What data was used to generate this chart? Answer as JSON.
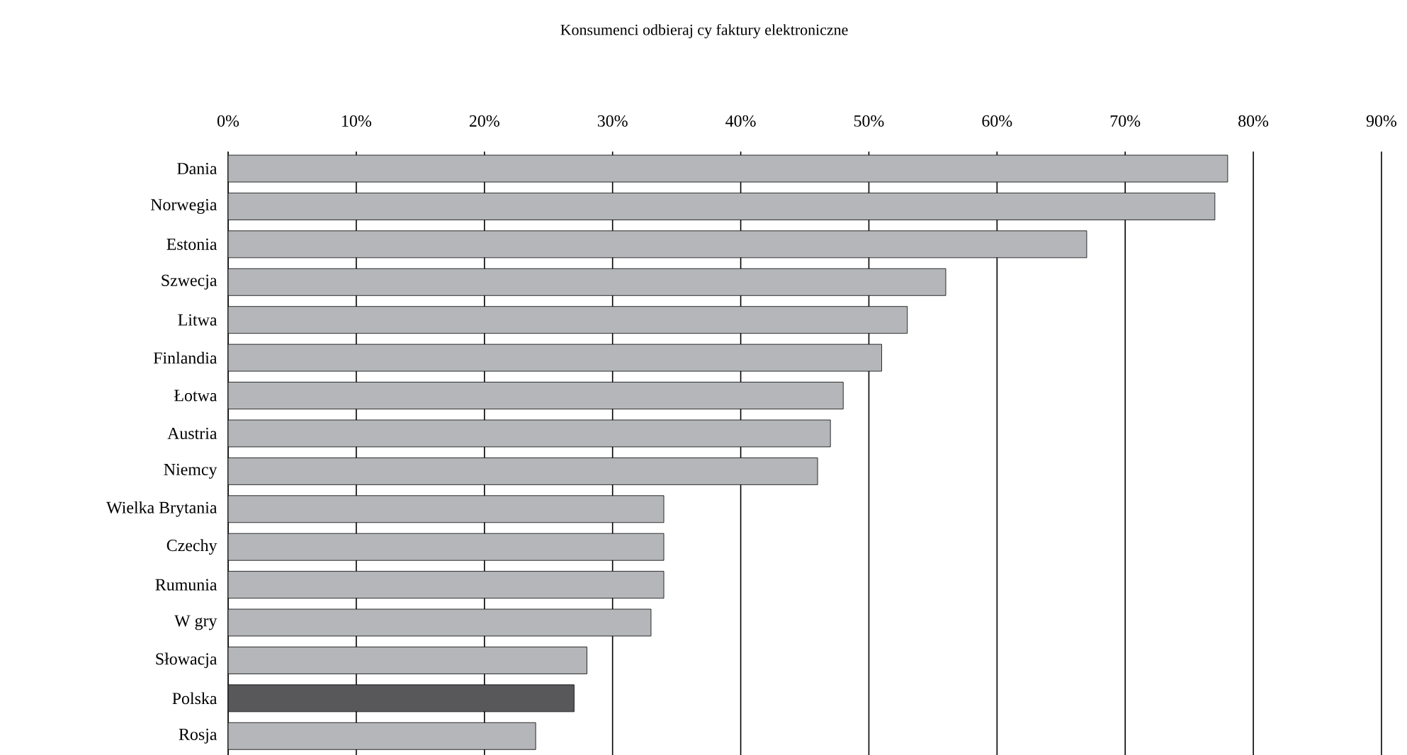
{
  "chart_data": {
    "type": "bar",
    "orientation": "horizontal",
    "title": "Konsumenci odbieraj cy faktury elektroniczne",
    "categories": [
      "Dania",
      "Norwegia",
      "Estonia",
      "Szwecja",
      "Litwa",
      "Finlandia",
      "Łotwa",
      "Austria",
      "Niemcy",
      "Wielka Brytania",
      "Czechy",
      "Rumunia",
      "W gry",
      "Słowacja",
      "Polska",
      "Rosja"
    ],
    "values": [
      78,
      77,
      67,
      56,
      53,
      51,
      48,
      47,
      46,
      34,
      34,
      34,
      33,
      28,
      27,
      24
    ],
    "colors": [
      "#b4b6b9",
      "#b4b6b9",
      "#b4b6b9",
      "#b4b6b9",
      "#b4b6b9",
      "#b4b6b9",
      "#b4b6b9",
      "#b4b6b9",
      "#b4b6b9",
      "#b4b6b9",
      "#b4b6b9",
      "#b4b6b9",
      "#b4b6b9",
      "#b4b6b9",
      "#58585b",
      "#b4b6b9"
    ],
    "xlim": [
      0,
      90
    ],
    "xticks": [
      {
        "value": 0,
        "label": "0%"
      },
      {
        "value": 10,
        "label": "10%"
      },
      {
        "value": 20,
        "label": "20%"
      },
      {
        "value": 30,
        "label": "30%"
      },
      {
        "value": 40,
        "label": "40%"
      },
      {
        "value": 50,
        "label": "50%"
      },
      {
        "value": 60,
        "label": "60%"
      },
      {
        "value": 70,
        "label": "70%"
      },
      {
        "value": 80,
        "label": "80%"
      },
      {
        "value": 90,
        "label": "90%"
      }
    ],
    "grid": "x"
  }
}
